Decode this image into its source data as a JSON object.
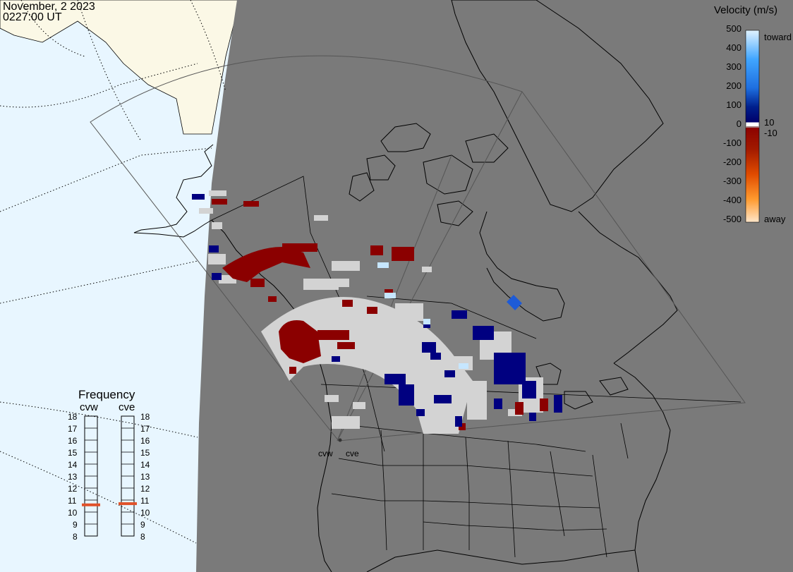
{
  "timestamp": {
    "date": "November, 2 2023",
    "time": "0227:00 UT"
  },
  "velocity_scale": {
    "title": "Velocity (m/s)",
    "ticks": [
      "500",
      "400",
      "300",
      "200",
      "100",
      "0",
      "-100",
      "-200",
      "-300",
      "-400",
      "-500"
    ],
    "toward_label": "toward",
    "away_label": "away",
    "pos_threshold": "10",
    "neg_threshold": "-10",
    "colors": {
      "toward_top": "#cce8ff",
      "toward_mid": "#1e90ff",
      "toward_low": "#000080",
      "away_low": "#8b0000",
      "away_mid": "#ff6600",
      "away_top": "#ffd9b3",
      "ground_scatter": "#d3d3d3"
    }
  },
  "frequency_panel": {
    "title": "Frequency",
    "radars": [
      "cvw",
      "cve"
    ],
    "ticks": [
      "18",
      "17",
      "16",
      "15",
      "14",
      "13",
      "12",
      "11",
      "10",
      "9",
      "8"
    ],
    "values_mhz": {
      "cvw": 10.6,
      "cve": 10.7
    },
    "marker_color": "#e0522a"
  },
  "map": {
    "radar_sites": [
      "cvw",
      "cve"
    ],
    "colors": {
      "night_shade": "#7a7a7a",
      "ocean_day": "#e8f6ff",
      "land_day": "#fbf8e6",
      "coast": "#000000"
    }
  }
}
